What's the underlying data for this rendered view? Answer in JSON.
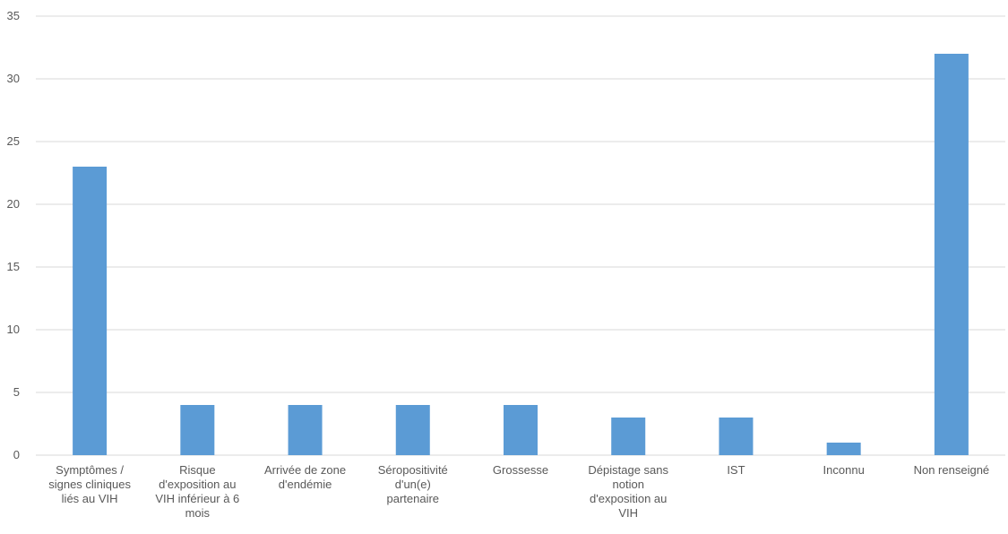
{
  "chart_data": {
    "type": "bar",
    "title": "",
    "xlabel": "",
    "ylabel": "",
    "ylim": [
      0,
      35
    ],
    "yticks": [
      0,
      5,
      10,
      15,
      20,
      25,
      30,
      35
    ],
    "grid": true,
    "bar_color": "#5b9bd5",
    "categories": [
      "Symptômes / signes cliniques liés au VIH",
      "Risque d'exposition au VIH inférieur à 6 mois",
      "Arrivée de zone d'endémie",
      "Séropositivité d'un(e) partenaire",
      "Grossesse",
      "Dépistage sans notion d'exposition au VIH",
      "IST",
      "Inconnu",
      "Non renseigné"
    ],
    "category_label_lines": [
      [
        "Symptômes /",
        "signes cliniques",
        "liés au VIH"
      ],
      [
        "Risque",
        "d'exposition au",
        "VIH inférieur à 6",
        "mois"
      ],
      [
        "Arrivée de zone",
        "d'endémie"
      ],
      [
        "Séropositivité",
        "d'un(e)",
        "partenaire"
      ],
      [
        "Grossesse"
      ],
      [
        "Dépistage sans",
        "notion",
        "d'exposition au",
        "VIH"
      ],
      [
        "IST"
      ],
      [
        "Inconnu"
      ],
      [
        "Non renseigné"
      ]
    ],
    "values": [
      23,
      4,
      4,
      4,
      4,
      3,
      3,
      1,
      32
    ]
  }
}
